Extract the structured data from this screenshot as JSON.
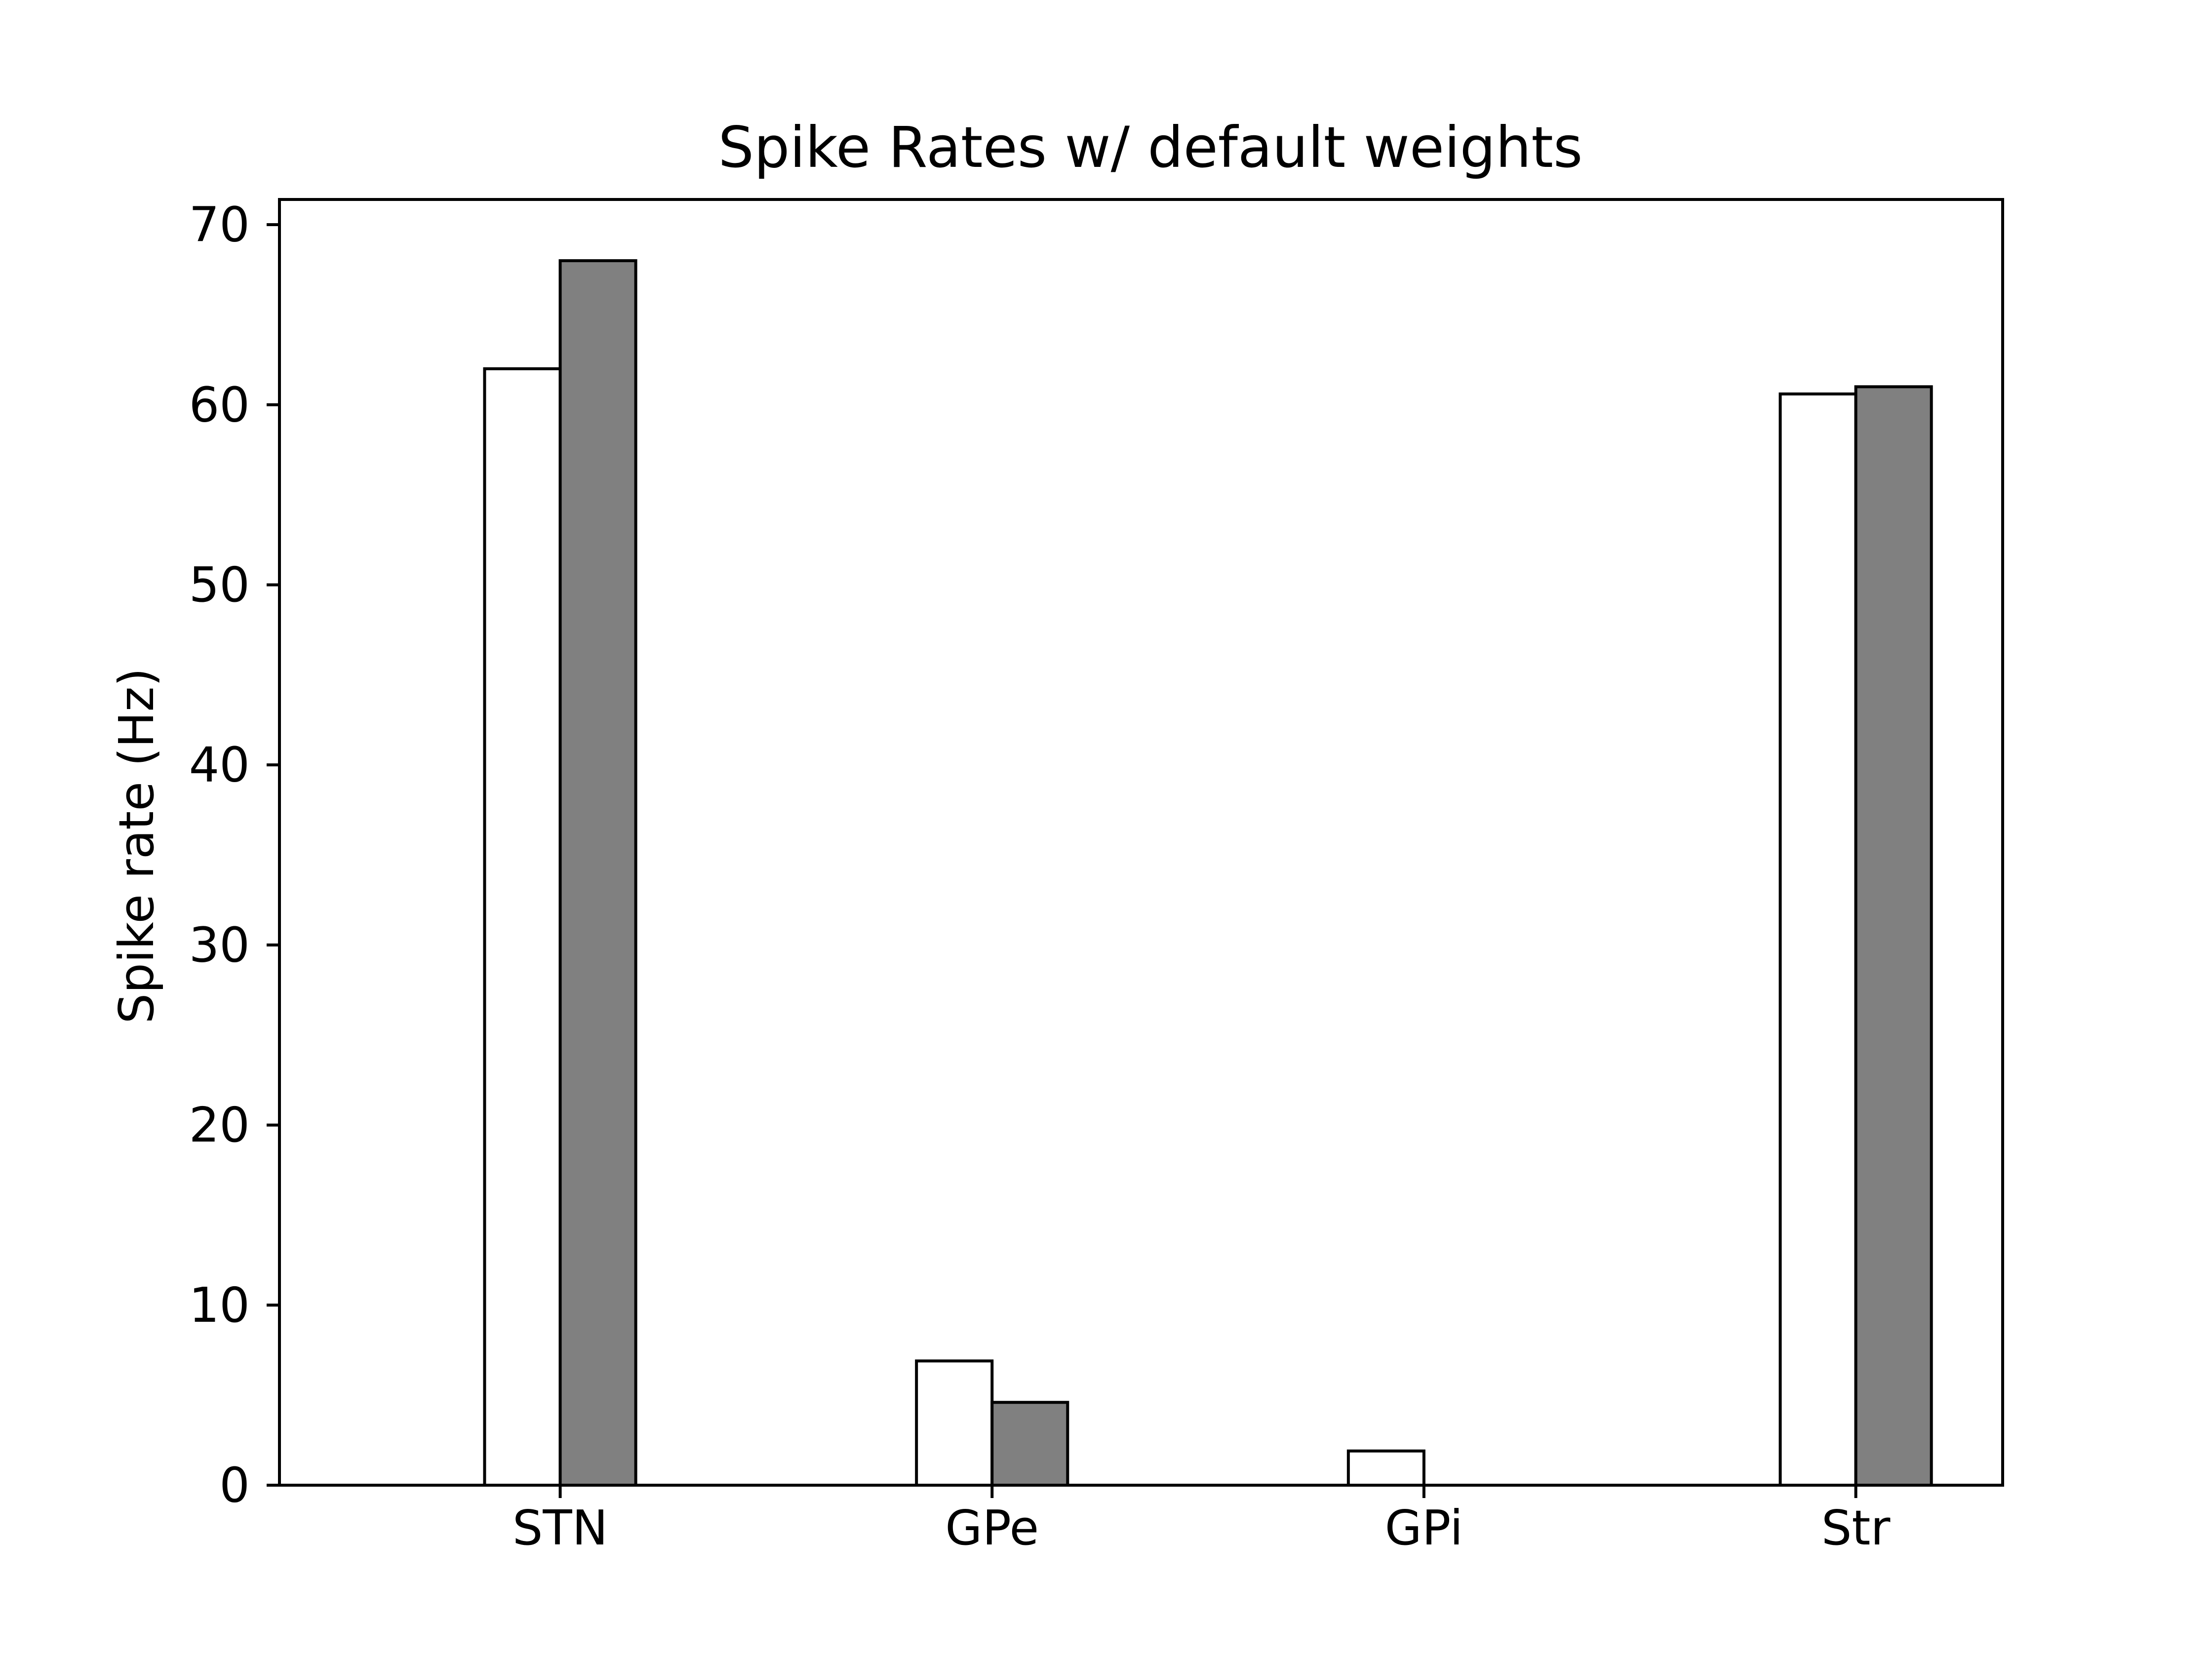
{
  "chart_data": {
    "type": "bar",
    "title": "Spike Rates w/ default weights",
    "xlabel": "",
    "ylabel": "Spike rate (Hz)",
    "categories": [
      "STN",
      "GPe",
      "GPi",
      "Str"
    ],
    "series": [
      {
        "values": [
          62.0,
          6.9,
          1.9,
          60.6
        ],
        "color": "#ffffff"
      },
      {
        "values": [
          68.0,
          4.6,
          0.0,
          61.0
        ],
        "color": "#808080"
      }
    ],
    "ylim": [
      0,
      71.4
    ],
    "yticks": [
      0,
      10,
      20,
      30,
      40,
      50,
      60,
      70
    ],
    "grid": false,
    "legend": "none"
  }
}
